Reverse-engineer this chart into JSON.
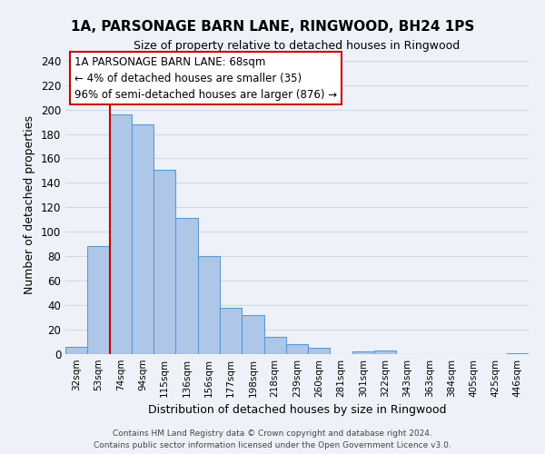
{
  "title": "1A, PARSONAGE BARN LANE, RINGWOOD, BH24 1PS",
  "subtitle": "Size of property relative to detached houses in Ringwood",
  "xlabel": "Distribution of detached houses by size in Ringwood",
  "ylabel": "Number of detached properties",
  "bin_labels": [
    "32sqm",
    "53sqm",
    "74sqm",
    "94sqm",
    "115sqm",
    "136sqm",
    "156sqm",
    "177sqm",
    "198sqm",
    "218sqm",
    "239sqm",
    "260sqm",
    "281sqm",
    "301sqm",
    "322sqm",
    "343sqm",
    "363sqm",
    "384sqm",
    "405sqm",
    "425sqm",
    "446sqm"
  ],
  "bar_heights": [
    6,
    88,
    196,
    188,
    151,
    111,
    80,
    38,
    32,
    14,
    8,
    5,
    0,
    2,
    3,
    0,
    0,
    0,
    0,
    0,
    1
  ],
  "bar_color": "#aec6e8",
  "bar_edge_color": "#5b9bd5",
  "vline_color": "#cc0000",
  "annotation_title": "1A PARSONAGE BARN LANE: 68sqm",
  "annotation_line1": "← 4% of detached houses are smaller (35)",
  "annotation_line2": "96% of semi-detached houses are larger (876) →",
  "annotation_box_color": "#ffffff",
  "annotation_box_edge": "#cc0000",
  "ylim": [
    0,
    245
  ],
  "yticks": [
    0,
    20,
    40,
    60,
    80,
    100,
    120,
    140,
    160,
    180,
    200,
    220,
    240
  ],
  "grid_color": "#d0d8e8",
  "footer_line1": "Contains HM Land Registry data © Crown copyright and database right 2024.",
  "footer_line2": "Contains public sector information licensed under the Open Government Licence v3.0.",
  "bg_color": "#eef2f8"
}
